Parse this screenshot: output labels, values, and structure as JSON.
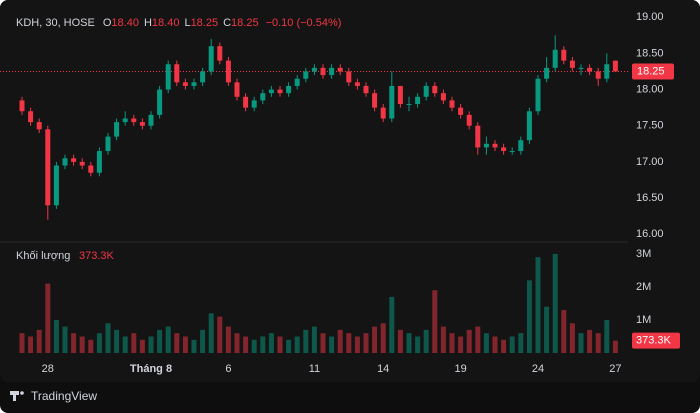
{
  "chart_data": {
    "type": "candlestick",
    "symbol": "KDH, 30, HOSE",
    "legend": [
      {
        "key": "O",
        "value": "18.40"
      },
      {
        "key": "H",
        "value": "18.40"
      },
      {
        "key": "L",
        "value": "18.25"
      },
      {
        "key": "C",
        "value": "18.25"
      }
    ],
    "change": "−0.10 (−0.54%)",
    "volume_title": "Khối lượng",
    "volume_label": "373.3K",
    "brand": "TradingView",
    "up_color": "#089981",
    "down_color": "#f23645",
    "grid": false,
    "last_price": 18.25,
    "categories": [
      null,
      null,
      null,
      "28",
      null,
      null,
      null,
      null,
      null,
      null,
      null,
      null,
      null,
      null,
      null,
      "Tháng 8",
      null,
      null,
      null,
      null,
      null,
      null,
      null,
      null,
      "6",
      null,
      null,
      null,
      null,
      null,
      null,
      null,
      null,
      null,
      "11",
      null,
      null,
      null,
      null,
      null,
      null,
      null,
      "14",
      null,
      null,
      null,
      null,
      null,
      null,
      null,
      null,
      "19",
      null,
      null,
      null,
      null,
      null,
      null,
      null,
      null,
      "24",
      null,
      null,
      null,
      null,
      null,
      null,
      null,
      null,
      "27"
    ],
    "open": [
      17.85,
      17.7,
      17.55,
      17.45,
      16.4,
      16.95,
      17.05,
      17.0,
      16.95,
      16.85,
      17.15,
      17.35,
      17.55,
      17.6,
      17.55,
      17.5,
      17.65,
      18.0,
      18.35,
      18.1,
      18.05,
      18.1,
      18.25,
      18.6,
      18.4,
      18.1,
      17.9,
      17.75,
      17.85,
      17.95,
      18.0,
      17.95,
      18.05,
      18.15,
      18.25,
      18.3,
      18.2,
      18.3,
      18.25,
      18.1,
      18.05,
      17.95,
      17.75,
      17.6,
      18.05,
      17.8,
      17.8,
      17.9,
      18.05,
      17.95,
      17.85,
      17.75,
      17.65,
      17.5,
      17.2,
      17.25,
      17.2,
      17.15,
      17.15,
      17.3,
      17.7,
      18.15,
      18.3,
      18.55,
      18.4,
      18.3,
      18.3,
      18.25,
      18.15,
      18.4
    ],
    "high": [
      17.9,
      17.75,
      17.6,
      17.5,
      17.0,
      17.1,
      17.1,
      17.05,
      17.0,
      17.2,
      17.4,
      17.6,
      17.7,
      17.65,
      17.6,
      17.7,
      18.05,
      18.4,
      18.4,
      18.15,
      18.15,
      18.3,
      18.7,
      18.65,
      18.45,
      18.15,
      17.95,
      17.9,
      18.0,
      18.05,
      18.05,
      18.1,
      18.2,
      18.3,
      18.35,
      18.35,
      18.35,
      18.35,
      18.3,
      18.15,
      18.1,
      18.0,
      17.8,
      18.25,
      18.05,
      17.9,
      17.95,
      18.1,
      18.1,
      18.0,
      17.9,
      17.8,
      17.7,
      17.55,
      17.35,
      17.3,
      17.25,
      17.2,
      17.35,
      17.75,
      18.2,
      18.45,
      18.75,
      18.6,
      18.45,
      18.35,
      18.35,
      18.3,
      18.5,
      18.4
    ],
    "low": [
      17.65,
      17.5,
      17.4,
      16.2,
      16.35,
      16.9,
      16.95,
      16.9,
      16.8,
      16.8,
      17.1,
      17.3,
      17.5,
      17.5,
      17.45,
      17.45,
      17.6,
      17.95,
      18.05,
      18.0,
      18.0,
      18.05,
      18.2,
      18.35,
      18.05,
      17.85,
      17.7,
      17.7,
      17.8,
      17.9,
      17.9,
      17.9,
      18.0,
      18.1,
      18.2,
      18.15,
      18.15,
      18.2,
      18.05,
      18.0,
      17.9,
      17.7,
      17.55,
      17.55,
      17.75,
      17.7,
      17.75,
      17.85,
      17.9,
      17.8,
      17.7,
      17.6,
      17.45,
      17.1,
      17.1,
      17.15,
      17.1,
      17.1,
      17.1,
      17.25,
      17.65,
      18.1,
      18.25,
      18.35,
      18.25,
      18.2,
      18.2,
      18.05,
      18.1,
      18.25
    ],
    "close": [
      17.7,
      17.55,
      17.45,
      16.4,
      16.95,
      17.05,
      17.0,
      16.95,
      16.85,
      17.15,
      17.35,
      17.55,
      17.6,
      17.55,
      17.5,
      17.65,
      18.0,
      18.35,
      18.1,
      18.05,
      18.1,
      18.25,
      18.6,
      18.4,
      18.1,
      17.9,
      17.75,
      17.85,
      17.95,
      18.0,
      17.95,
      18.05,
      18.15,
      18.25,
      18.3,
      18.2,
      18.3,
      18.25,
      18.1,
      18.05,
      17.95,
      17.75,
      17.6,
      18.05,
      17.8,
      17.8,
      17.9,
      18.05,
      17.95,
      17.85,
      17.75,
      17.65,
      17.5,
      17.2,
      17.25,
      17.2,
      17.15,
      17.15,
      17.3,
      17.7,
      18.15,
      18.3,
      18.55,
      18.4,
      18.3,
      18.3,
      18.25,
      18.15,
      18.35,
      18.25
    ],
    "volume": [
      600000,
      500000,
      700000,
      2100000,
      1000000,
      800000,
      600000,
      500000,
      400000,
      600000,
      900000,
      700000,
      500000,
      600000,
      400000,
      500000,
      700000,
      800000,
      600000,
      500000,
      400000,
      700000,
      1200000,
      1100000,
      800000,
      600000,
      500000,
      400000,
      500000,
      600000,
      500000,
      400000,
      500000,
      700000,
      800000,
      600000,
      500000,
      700000,
      600000,
      500000,
      600000,
      800000,
      900000,
      1700000,
      700000,
      600000,
      500000,
      700000,
      1900000,
      800000,
      600000,
      500000,
      700000,
      800000,
      600000,
      500000,
      400000,
      500000,
      600000,
      2200000,
      2900000,
      1400000,
      3000000,
      1300000,
      900000,
      600000,
      700000,
      600000,
      1000000,
      373300
    ],
    "ylim": [
      15.92,
      19.1
    ],
    "yticks": [
      {
        "value": 16,
        "label": "16.00"
      },
      {
        "value": 16.5,
        "label": "16.50"
      },
      {
        "value": 17,
        "label": "17.00"
      },
      {
        "value": 17.5,
        "label": "17.50"
      },
      {
        "value": 18,
        "label": "18.00"
      },
      {
        "value": 18.5,
        "label": "18.50"
      },
      {
        "value": 19,
        "label": "19.00"
      }
    ],
    "vol_ylim": [
      0,
      3270000
    ],
    "vol_yticks": [
      {
        "value": 1000000,
        "label": "1M"
      },
      {
        "value": 2000000,
        "label": "2M"
      },
      {
        "value": 3000000,
        "label": "3M"
      }
    ]
  }
}
